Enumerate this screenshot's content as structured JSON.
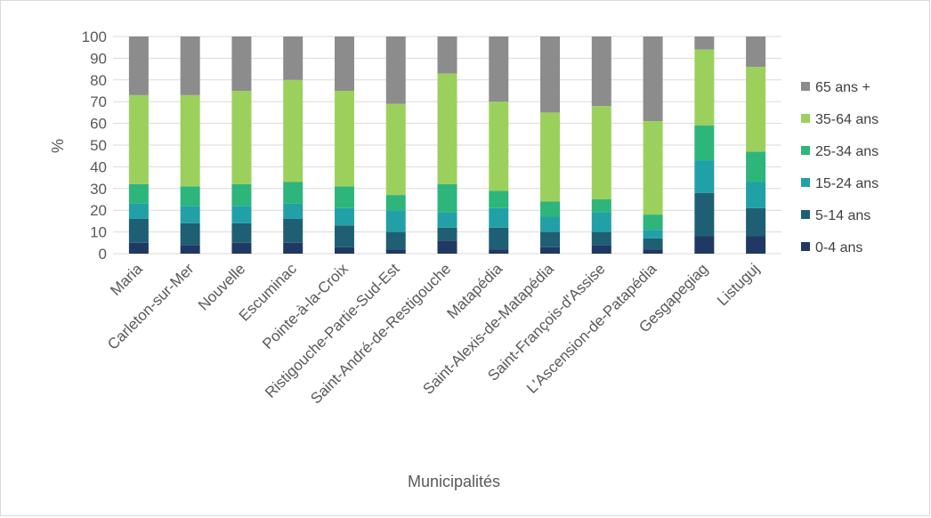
{
  "chart_data": {
    "type": "bar",
    "stacked": true,
    "title": "",
    "xlabel": "Municipalités",
    "ylabel": "%",
    "ylim": [
      0,
      100
    ],
    "yticks": [
      0,
      10,
      20,
      30,
      40,
      50,
      60,
      70,
      80,
      90,
      100
    ],
    "grid": true,
    "legend_position": "right",
    "categories": [
      "Maria",
      "Carleton-sur-Mer",
      "Nouvelle",
      "Escuminac",
      "Pointe-à-la-Croix",
      "Ristigouche-Partie-Sud-Est",
      "Saint-André-de-Restigouche",
      "Matapédia",
      "Saint-Alexis-de-Matapédia",
      "Saint-François-d'Assise",
      "L'Ascension-de-Patapédia",
      "Gesgapegiag",
      "Listuguj"
    ],
    "series": [
      {
        "name": "0-4 ans",
        "color": "#203864",
        "values": [
          5,
          4,
          5,
          5,
          3,
          2,
          6,
          2,
          3,
          4,
          2,
          8,
          8
        ]
      },
      {
        "name": "5-14 ans",
        "color": "#1f5f74",
        "values": [
          11,
          10,
          9,
          11,
          10,
          8,
          6,
          10,
          7,
          6,
          5,
          20,
          13
        ]
      },
      {
        "name": "15-24 ans",
        "color": "#21a0a8",
        "values": [
          7,
          8,
          8,
          7,
          8,
          10,
          7,
          9,
          7,
          9,
          4,
          15,
          12
        ]
      },
      {
        "name": "25-34 ans",
        "color": "#2db57c",
        "values": [
          9,
          9,
          10,
          10,
          10,
          7,
          13,
          8,
          7,
          6,
          7,
          16,
          14
        ]
      },
      {
        "name": "35-64 ans",
        "color": "#9cd05c",
        "values": [
          41,
          42,
          43,
          47,
          44,
          42,
          51,
          41,
          41,
          43,
          43,
          35,
          39
        ]
      },
      {
        "name": "65 ans +",
        "color": "#8c8c8c",
        "values": [
          27,
          27,
          25,
          20,
          25,
          31,
          17,
          30,
          35,
          32,
          39,
          6,
          14
        ]
      }
    ]
  }
}
